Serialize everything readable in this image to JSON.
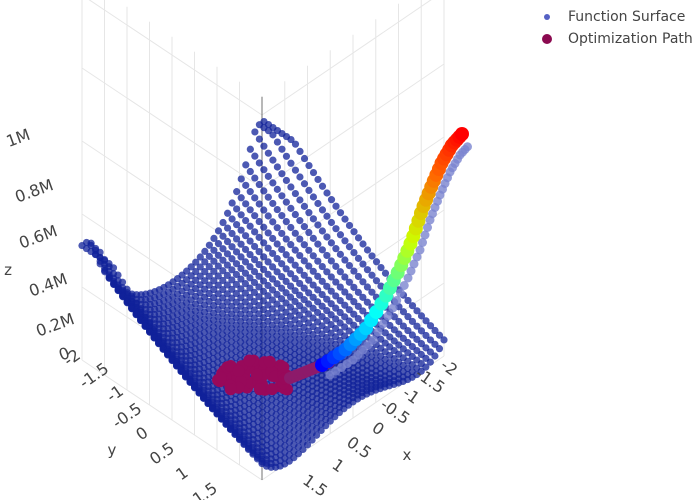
{
  "chart_data": {
    "type": "scatter3d",
    "title": "",
    "axes": {
      "x": {
        "label": "x",
        "ticks": [
          "-2",
          "-1.5",
          "-1",
          "-0.5",
          "0",
          "0.5",
          "1",
          "1.5"
        ]
      },
      "y": {
        "label": "y",
        "ticks": [
          "-2",
          "-1.5",
          "-1",
          "-0.5",
          "0",
          "0.5",
          "1",
          "1.5"
        ]
      },
      "z": {
        "label": "z",
        "ticks": [
          "0",
          "0.2M",
          "0.4M",
          "0.6M",
          "0.8M",
          "1M"
        ]
      }
    },
    "legend_placement": "top-right",
    "series": [
      {
        "name": "Function Surface",
        "color": "#1f2fbf",
        "marker": "small-dot"
      },
      {
        "name": "Optimization Path",
        "color": "#8b0a50",
        "marker": "large-dot"
      }
    ],
    "colorscale": [
      "#0000ff",
      "#00ffff",
      "#ccff00",
      "#ff6600",
      "#ff0000"
    ]
  }
}
